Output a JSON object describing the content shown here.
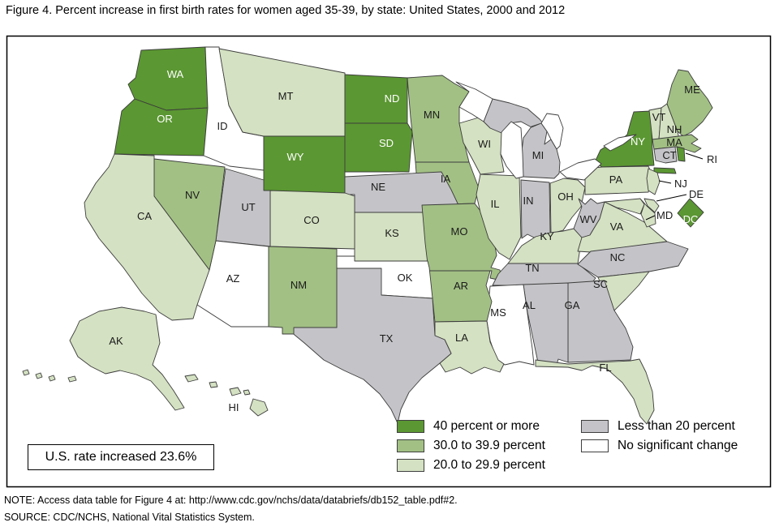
{
  "figure": {
    "title": "Figure 4. Percent increase in first birth rates for women aged 35-39, by state: United States, 2000 and 2012",
    "us_rate_note": "U.S. rate increased 23.6%",
    "note": "NOTE: Access data table for Figure 4 at: http://www.cdc.gov/nchs/data/databriefs/db152_table.pdf#2.",
    "source": "SOURCE: CDC/NCHS, National Vital Statistics System."
  },
  "legend": {
    "items": [
      {
        "label": "40 percent or more",
        "color": "#5b9732"
      },
      {
        "label": "30.0 to 39.9 percent",
        "color": "#a2c084"
      },
      {
        "label": "20.0 to 29.9 percent",
        "color": "#d4e1c2"
      },
      {
        "label": "Less than 20 percent",
        "color": "#c4c4c8"
      },
      {
        "label": "No significant change",
        "color": "#ffffff"
      }
    ]
  },
  "chart_data": {
    "type": "choropleth",
    "title": "Percent increase in first birth rates for women aged 35-39, by state, United States, 2000 and 2012",
    "unit": "percent increase category",
    "us_rate_increase_pct": 23.6,
    "categories": [
      "40 percent or more",
      "30.0 to 39.9 percent",
      "20.0 to 29.9 percent",
      "Less than 20 percent",
      "No significant change"
    ],
    "states": [
      {
        "abbr": "WA",
        "category": "40 percent or more"
      },
      {
        "abbr": "OR",
        "category": "40 percent or more"
      },
      {
        "abbr": "WY",
        "category": "40 percent or more"
      },
      {
        "abbr": "ND",
        "category": "40 percent or more"
      },
      {
        "abbr": "SD",
        "category": "40 percent or more"
      },
      {
        "abbr": "NY",
        "category": "40 percent or more"
      },
      {
        "abbr": "RI",
        "category": "40 percent or more"
      },
      {
        "abbr": "DC",
        "category": "40 percent or more"
      },
      {
        "abbr": "NV",
        "category": "30.0 to 39.9 percent"
      },
      {
        "abbr": "NM",
        "category": "30.0 to 39.9 percent"
      },
      {
        "abbr": "MN",
        "category": "30.0 to 39.9 percent"
      },
      {
        "abbr": "IA",
        "category": "30.0 to 39.9 percent"
      },
      {
        "abbr": "MO",
        "category": "30.0 to 39.9 percent"
      },
      {
        "abbr": "AR",
        "category": "30.0 to 39.9 percent"
      },
      {
        "abbr": "ME",
        "category": "30.0 to 39.9 percent"
      },
      {
        "abbr": "MA",
        "category": "30.0 to 39.9 percent"
      },
      {
        "abbr": "MT",
        "category": "20.0 to 29.9 percent"
      },
      {
        "abbr": "CA",
        "category": "20.0 to 29.9 percent"
      },
      {
        "abbr": "CO",
        "category": "20.0 to 29.9 percent"
      },
      {
        "abbr": "KS",
        "category": "20.0 to 29.9 percent"
      },
      {
        "abbr": "WI",
        "category": "20.0 to 29.9 percent"
      },
      {
        "abbr": "IL",
        "category": "20.0 to 29.9 percent"
      },
      {
        "abbr": "KY",
        "category": "20.0 to 29.9 percent"
      },
      {
        "abbr": "OH",
        "category": "20.0 to 29.9 percent"
      },
      {
        "abbr": "PA",
        "category": "20.0 to 29.9 percent"
      },
      {
        "abbr": "NJ",
        "category": "20.0 to 29.9 percent"
      },
      {
        "abbr": "VT",
        "category": "20.0 to 29.9 percent"
      },
      {
        "abbr": "NH",
        "category": "20.0 to 29.9 percent"
      },
      {
        "abbr": "VA",
        "category": "20.0 to 29.9 percent"
      },
      {
        "abbr": "MD",
        "category": "20.0 to 29.9 percent"
      },
      {
        "abbr": "DE",
        "category": "20.0 to 29.9 percent"
      },
      {
        "abbr": "SC",
        "category": "20.0 to 29.9 percent"
      },
      {
        "abbr": "FL",
        "category": "20.0 to 29.9 percent"
      },
      {
        "abbr": "LA",
        "category": "20.0 to 29.9 percent"
      },
      {
        "abbr": "AK",
        "category": "20.0 to 29.9 percent"
      },
      {
        "abbr": "HI",
        "category": "20.0 to 29.9 percent"
      },
      {
        "abbr": "UT",
        "category": "Less than 20 percent"
      },
      {
        "abbr": "NE",
        "category": "Less than 20 percent"
      },
      {
        "abbr": "TX",
        "category": "Less than 20 percent"
      },
      {
        "abbr": "MI",
        "category": "Less than 20 percent"
      },
      {
        "abbr": "IN",
        "category": "Less than 20 percent"
      },
      {
        "abbr": "WV",
        "category": "Less than 20 percent"
      },
      {
        "abbr": "NC",
        "category": "Less than 20 percent"
      },
      {
        "abbr": "TN",
        "category": "Less than 20 percent"
      },
      {
        "abbr": "AL",
        "category": "Less than 20 percent"
      },
      {
        "abbr": "GA",
        "category": "Less than 20 percent"
      },
      {
        "abbr": "CT",
        "category": "Less than 20 percent"
      },
      {
        "abbr": "ID",
        "category": "No significant change"
      },
      {
        "abbr": "AZ",
        "category": "No significant change"
      },
      {
        "abbr": "OK",
        "category": "No significant change"
      },
      {
        "abbr": "MS",
        "category": "No significant change"
      }
    ]
  }
}
